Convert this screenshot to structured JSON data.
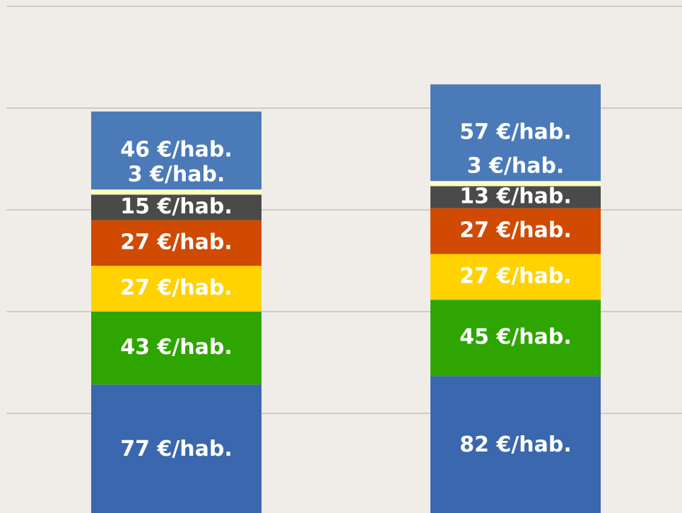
{
  "chart_data": {
    "type": "stacked_bar",
    "ylim": [
      0,
      300
    ],
    "yticks": [
      60,
      120,
      180,
      240,
      300
    ],
    "grid": true,
    "series": [
      {
        "color": "#3a67ae",
        "values": [
          77,
          82
        ],
        "value_labels": [
          "77 €/hab.",
          "82 €/hab."
        ]
      },
      {
        "color": "#2ea500",
        "values": [
          43,
          45
        ],
        "value_labels": [
          "43 €/hab.",
          "45 €/hab."
        ]
      },
      {
        "color": "#ffd200",
        "values": [
          27,
          27
        ],
        "value_labels": [
          "27 €/hab.",
          "27 €/hab."
        ]
      },
      {
        "color": "#d04a02",
        "values": [
          27,
          27
        ],
        "value_labels": [
          "27 €/hab.",
          "27 €/hab."
        ]
      },
      {
        "color": "#4a4a4a",
        "values": [
          15,
          13
        ],
        "value_labels": [
          "15 €/hab.",
          "13 €/hab."
        ]
      },
      {
        "color": "#ffffc0",
        "values": [
          3,
          3
        ],
        "value_labels": [
          "3 €/hab.",
          "3 €/hab."
        ]
      },
      {
        "color": "#4a7ab8",
        "values": [
          46,
          57
        ],
        "value_labels": [
          "46 €/hab.",
          "57 €/hab."
        ]
      }
    ]
  }
}
